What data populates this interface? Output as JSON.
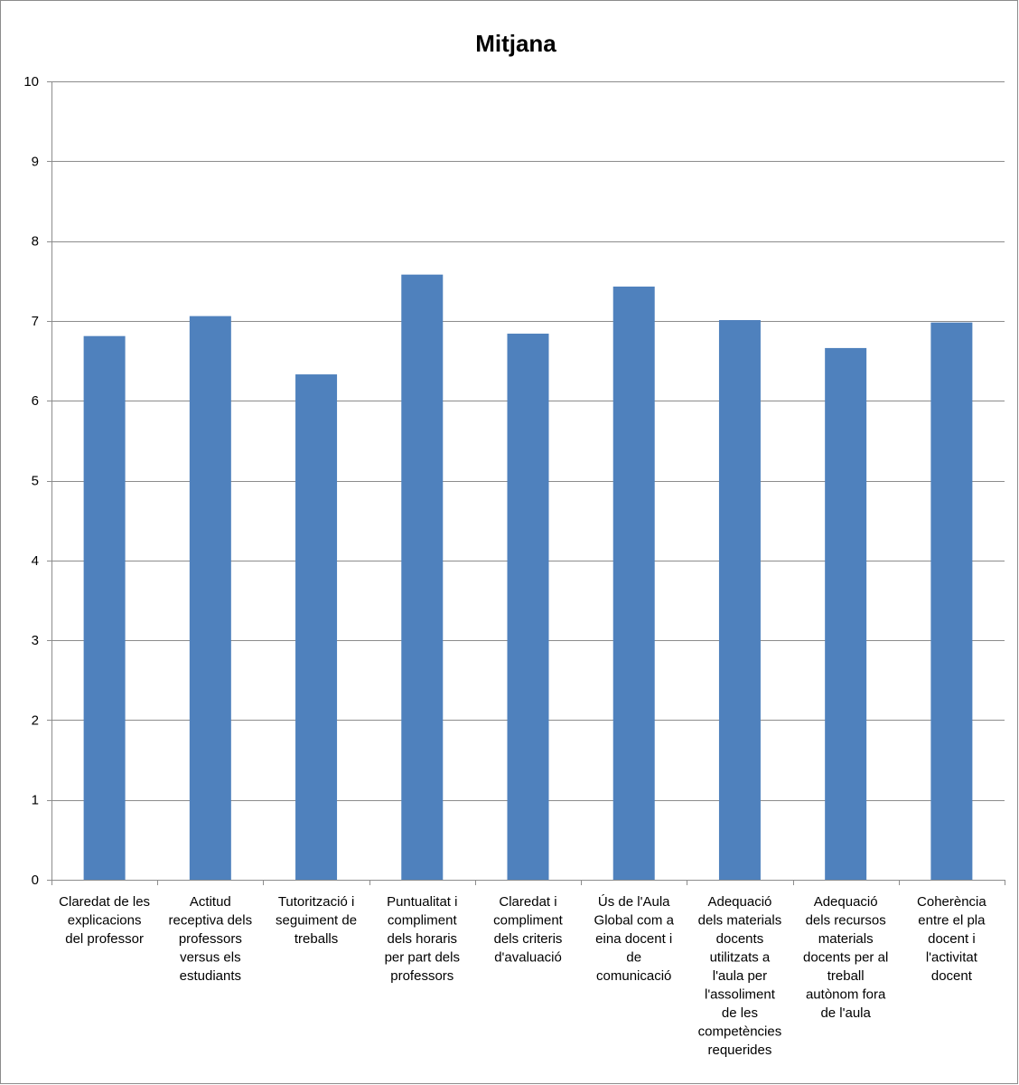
{
  "chart_data": {
    "type": "bar",
    "title": "Mitjana",
    "xlabel": "",
    "ylabel": "",
    "ylim": [
      0,
      10
    ],
    "yticks": [
      "0",
      "1",
      "2",
      "3",
      "4",
      "5",
      "6",
      "7",
      "8",
      "9",
      "10"
    ],
    "grid": true,
    "legend": "none",
    "bar_color": "#4f81bd",
    "categories": [
      [
        "Claredat de les",
        "explicacions",
        "del professor"
      ],
      [
        "Actitud",
        "receptiva dels",
        "professors",
        "versus els",
        "estudiants"
      ],
      [
        "Tutorització i",
        "seguiment de",
        "treballs"
      ],
      [
        "Puntualitat i",
        "compliment",
        "dels horaris",
        "per part dels",
        "professors"
      ],
      [
        "Claredat i",
        "compliment",
        "dels criteris",
        "d'avaluació"
      ],
      [
        "Ús de l'Aula",
        "Global com a",
        "eina docent i",
        "de",
        "comunicació"
      ],
      [
        "Adequació",
        "dels materials",
        "docents",
        "utilitzats a",
        "l'aula per",
        "l'assoliment",
        "de les",
        "competències",
        "requerides"
      ],
      [
        "Adequació",
        "dels recursos",
        "materials",
        "docents per al",
        "treball",
        "autònom fora",
        "de l'aula"
      ],
      [
        "Coherència",
        "entre el pla",
        "docent i",
        "l'activitat",
        "docent"
      ]
    ],
    "values": [
      6.81,
      7.06,
      6.33,
      7.58,
      6.84,
      7.43,
      7.01,
      6.66,
      6.98
    ]
  }
}
